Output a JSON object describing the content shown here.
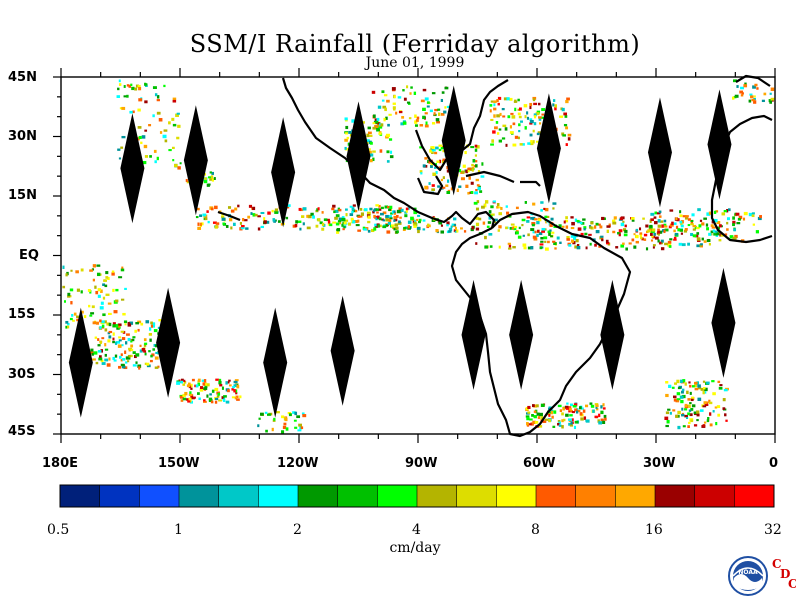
{
  "title": "SSM/I Rainfall (Ferriday algorithm)",
  "subtitle": "June 01, 1999",
  "lat_labels": [
    "45N",
    "30N",
    "15N",
    "EQ",
    "15S",
    "30S",
    "45S"
  ],
  "lon_labels": [
    "180E",
    "150W",
    "120W",
    "90W",
    "60W",
    "30W",
    "0"
  ],
  "colorbar": {
    "units": "cm/day",
    "tick_labels": [
      "0.5",
      "1",
      "2",
      "4",
      "8",
      "16",
      "32"
    ],
    "colors": [
      "#00207a",
      "#0033c0",
      "#1050ff",
      "#00939b",
      "#00c8c8",
      "#00ffff",
      "#009900",
      "#00c000",
      "#00ff00",
      "#b4b400",
      "#dddd00",
      "#ffff00",
      "#ff5a00",
      "#ff8000",
      "#ffa800",
      "#9a0000",
      "#cc0000",
      "#ff0000"
    ]
  },
  "logo": {
    "org": "NOAA",
    "letters": [
      "C",
      "D",
      "C"
    ]
  },
  "map": {
    "projection": "equirectangular",
    "lon_range": [
      -180,
      0
    ],
    "lat_range": [
      -45,
      45
    ],
    "diamonds": [
      {
        "lon": -162,
        "lat": 22
      },
      {
        "lon": -146,
        "lat": 24
      },
      {
        "lon": -124,
        "lat": 21
      },
      {
        "lon": -105,
        "lat": 25
      },
      {
        "lon": -81,
        "lat": 29
      },
      {
        "lon": -57,
        "lat": 27
      },
      {
        "lon": -29,
        "lat": 26
      },
      {
        "lon": -14,
        "lat": 28
      },
      {
        "lon": -175,
        "lat": -27
      },
      {
        "lon": -153,
        "lat": -22
      },
      {
        "lon": -126,
        "lat": -27
      },
      {
        "lon": -109,
        "lat": -24
      },
      {
        "lon": -76,
        "lat": -20
      },
      {
        "lon": -64,
        "lat": -20
      },
      {
        "lon": -41,
        "lat": -20
      },
      {
        "lon": -13,
        "lat": -17
      }
    ]
  }
}
